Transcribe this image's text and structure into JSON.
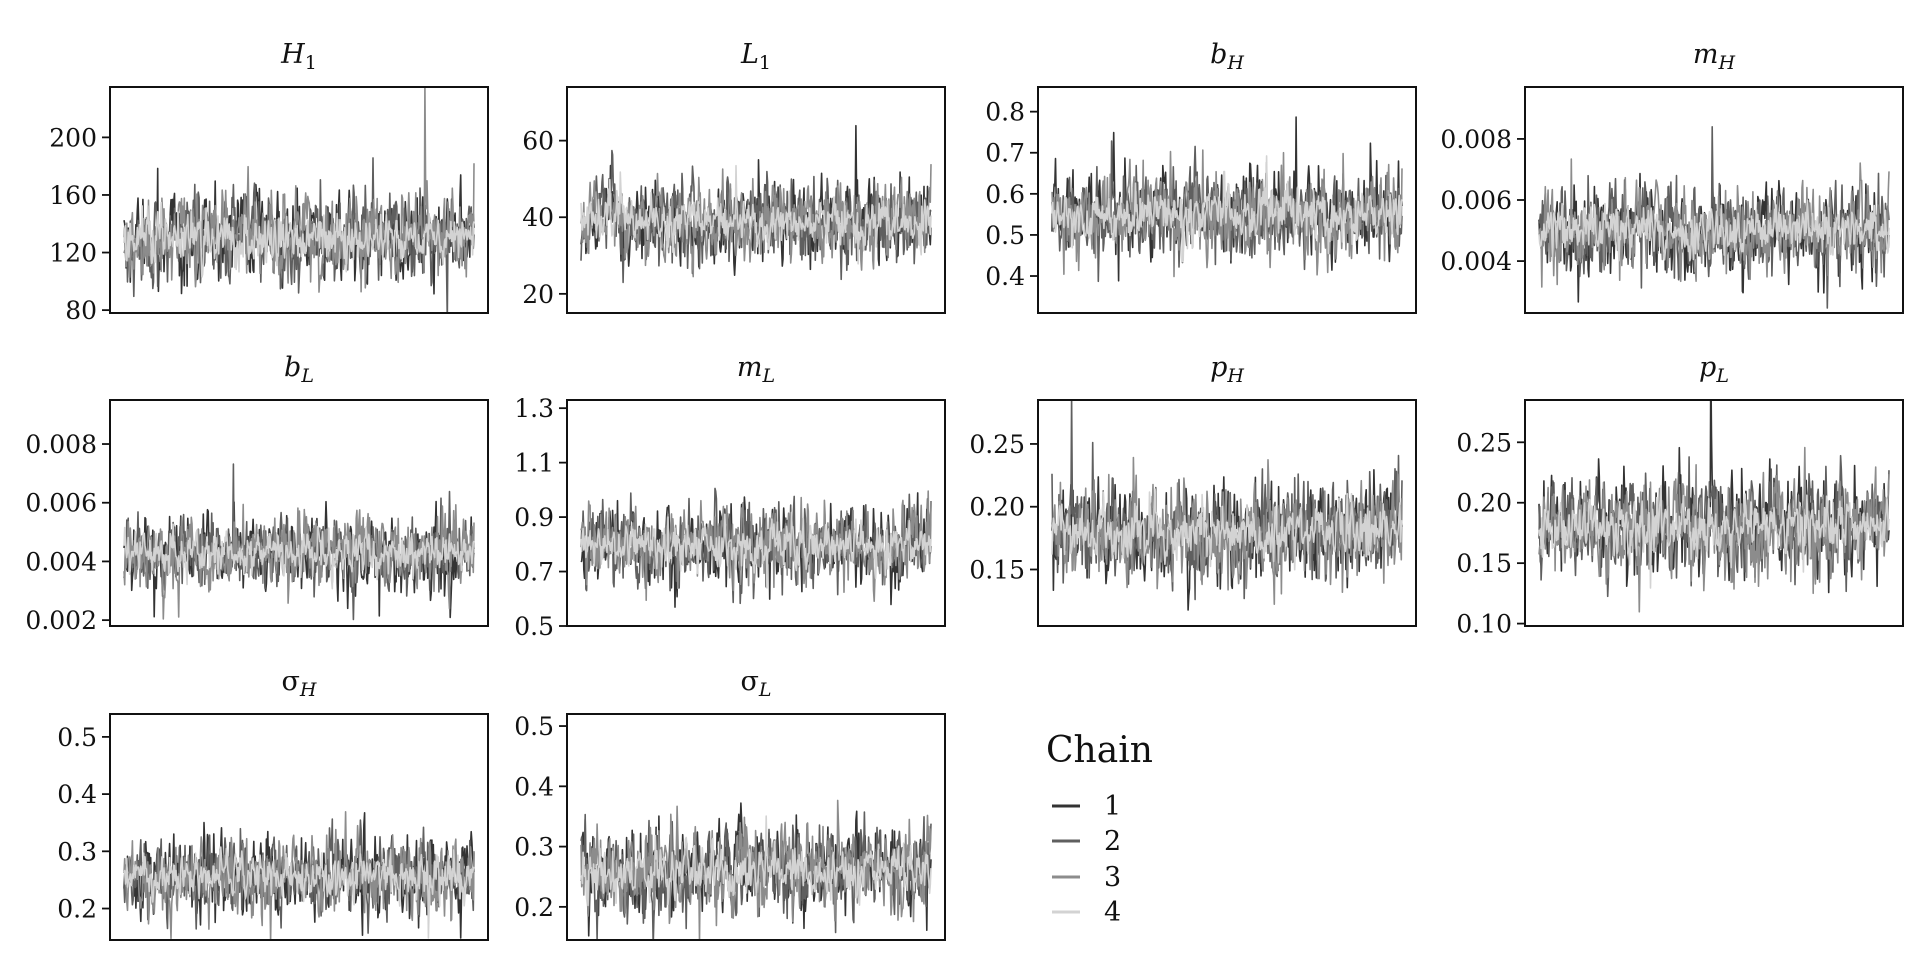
{
  "chart_data": [
    {
      "type": "line",
      "title": "H₁",
      "ylim": [
        78,
        235
      ],
      "yticks": [
        80,
        120,
        160,
        200
      ],
      "ytick_labels": [
        "80",
        "120",
        "160",
        "200"
      ],
      "center": 130,
      "spread": 22,
      "series_names": [
        "1",
        "2",
        "3",
        "4"
      ],
      "samples": 500
    },
    {
      "type": "line",
      "title": "L₁",
      "ylim": [
        15,
        74
      ],
      "yticks": [
        20,
        40,
        60
      ],
      "ytick_labels": [
        "20",
        "40",
        "60"
      ],
      "center": 39,
      "spread": 7.5,
      "series_names": [
        "1",
        "2",
        "3",
        "4"
      ],
      "samples": 500
    },
    {
      "type": "line",
      "title": "b_H",
      "ylim": [
        0.31,
        0.86
      ],
      "yticks": [
        0.4,
        0.5,
        0.6,
        0.7,
        0.8
      ],
      "ytick_labels": [
        "0.4",
        "0.5",
        "0.6",
        "0.7",
        "0.8"
      ],
      "center": 0.55,
      "spread": 0.075,
      "series_names": [
        "1",
        "2",
        "3",
        "4"
      ],
      "samples": 500
    },
    {
      "type": "line",
      "title": "m_H",
      "ylim": [
        0.0023,
        0.0097
      ],
      "yticks": [
        0.004,
        0.006,
        0.008
      ],
      "ytick_labels": [
        "0.004",
        "0.006",
        "0.008"
      ],
      "center": 0.005,
      "spread": 0.001,
      "series_names": [
        "1",
        "2",
        "3",
        "4"
      ],
      "samples": 500
    },
    {
      "type": "line",
      "title": "b_L",
      "ylim": [
        0.0018,
        0.0095
      ],
      "yticks": [
        0.002,
        0.004,
        0.006,
        0.008
      ],
      "ytick_labels": [
        "0.002",
        "0.004",
        "0.006",
        "0.008"
      ],
      "center": 0.0043,
      "spread": 0.0009,
      "series_names": [
        "1",
        "2",
        "3",
        "4"
      ],
      "samples": 500
    },
    {
      "type": "line",
      "title": "m_L",
      "ylim": [
        0.5,
        1.33
      ],
      "yticks": [
        0.5,
        0.7,
        0.9,
        1.1,
        1.3
      ],
      "ytick_labels": [
        "0.5",
        "0.7",
        "0.9",
        "1.1",
        "1.3"
      ],
      "center": 0.8,
      "spread": 0.1,
      "series_names": [
        "1",
        "2",
        "3",
        "4"
      ],
      "samples": 500
    },
    {
      "type": "line",
      "title": "p_H",
      "ylim": [
        0.105,
        0.285
      ],
      "yticks": [
        0.15,
        0.2,
        0.25
      ],
      "ytick_labels": [
        "0.15",
        "0.20",
        "0.25"
      ],
      "center": 0.18,
      "spread": 0.027,
      "series_names": [
        "1",
        "2",
        "3",
        "4"
      ],
      "samples": 500
    },
    {
      "type": "line",
      "title": "p_L",
      "ylim": [
        0.098,
        0.285
      ],
      "yticks": [
        0.1,
        0.15,
        0.2,
        0.25
      ],
      "ytick_labels": [
        "0.10",
        "0.15",
        "0.20",
        "0.25"
      ],
      "center": 0.18,
      "spread": 0.028,
      "series_names": [
        "1",
        "2",
        "3",
        "4"
      ],
      "samples": 500
    },
    {
      "type": "line",
      "title": "σ_H",
      "ylim": [
        0.145,
        0.54
      ],
      "yticks": [
        0.2,
        0.3,
        0.4,
        0.5
      ],
      "ytick_labels": [
        "0.2",
        "0.3",
        "0.4",
        "0.5"
      ],
      "center": 0.255,
      "spread": 0.05,
      "series_names": [
        "1",
        "2",
        "3",
        "4"
      ],
      "samples": 500
    },
    {
      "type": "line",
      "title": "σ_L",
      "ylim": [
        0.145,
        0.52
      ],
      "yticks": [
        0.2,
        0.3,
        0.4,
        0.5
      ],
      "ytick_labels": [
        "0.2",
        "0.3",
        "0.4",
        "0.5"
      ],
      "center": 0.26,
      "spread": 0.05,
      "series_names": [
        "1",
        "2",
        "3",
        "4"
      ],
      "samples": 500
    }
  ],
  "legend": {
    "title": "Chain",
    "entries": [
      {
        "label": "1",
        "color": "#333333"
      },
      {
        "label": "2",
        "color": "#5f5f5f"
      },
      {
        "label": "3",
        "color": "#8c8c8c"
      },
      {
        "label": "4",
        "color": "#d3d3d3"
      }
    ]
  }
}
